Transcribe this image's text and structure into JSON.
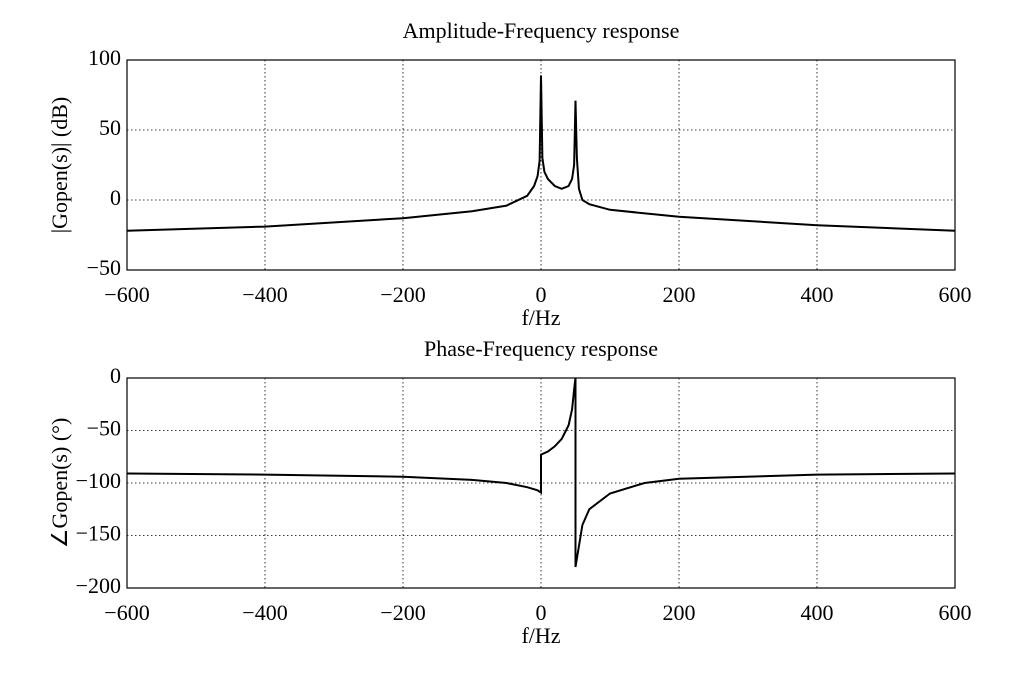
{
  "chart_data": [
    {
      "type": "line",
      "title": "Amplitude-Frequency response",
      "x_label": "f/Hz",
      "y_label": "|Gopen(s)| (dB)",
      "color": "#000000",
      "grid": true,
      "x": [
        -600,
        -400,
        -200,
        -100,
        -50,
        -20,
        -10,
        -5,
        -2,
        0,
        2,
        5,
        10,
        20,
        30,
        40,
        45,
        48,
        50,
        52,
        55,
        60,
        70,
        100,
        200,
        400,
        600
      ],
      "values": [
        -22,
        -19,
        -13,
        -8,
        -4,
        3,
        10,
        17,
        28,
        89,
        30,
        20,
        15,
        10,
        8,
        10,
        15,
        25,
        71,
        30,
        8,
        0,
        -3,
        -7,
        -12,
        -18,
        -22
      ],
      "xlim": [
        -600,
        600
      ],
      "xticks": [
        {
          "value": -600,
          "label": "−600"
        },
        {
          "value": -400,
          "label": "−400"
        },
        {
          "value": -200,
          "label": "−200"
        },
        0,
        200,
        400,
        600
      ],
      "ylim": [
        -50,
        100
      ],
      "yticks": [
        {
          "value": -50,
          "label": "−50"
        },
        0,
        50,
        100
      ]
    },
    {
      "type": "line",
      "title": "Phase-Frequency response",
      "x_label": "f/Hz",
      "y_label": "∠Gopen(s) (°)",
      "color": "#000000",
      "grid": true,
      "x": [
        -600,
        -400,
        -200,
        -100,
        -50,
        -20,
        -5,
        0,
        0,
        10,
        20,
        30,
        40,
        45,
        49,
        50,
        50,
        55,
        60,
        70,
        100,
        150,
        200,
        400,
        600
      ],
      "values": [
        -91,
        -92,
        -94,
        -97,
        -100,
        -104,
        -107,
        -109,
        -73,
        -70,
        -65,
        -58,
        -45,
        -30,
        -5,
        0,
        -180,
        -160,
        -140,
        -125,
        -110,
        -100,
        -96,
        -92,
        -91
      ],
      "xlim": [
        -600,
        600
      ],
      "xticks": [
        {
          "value": -600,
          "label": "−600"
        },
        {
          "value": -400,
          "label": "−400"
        },
        {
          "value": -200,
          "label": "−200"
        },
        0,
        200,
        400,
        600
      ],
      "ylim": [
        -200,
        0
      ],
      "yticks": [
        {
          "value": -200,
          "label": "−200"
        },
        {
          "value": -150,
          "label": "−150"
        },
        {
          "value": -100,
          "label": "−100"
        },
        {
          "value": -50,
          "label": "−50"
        },
        0
      ]
    }
  ]
}
